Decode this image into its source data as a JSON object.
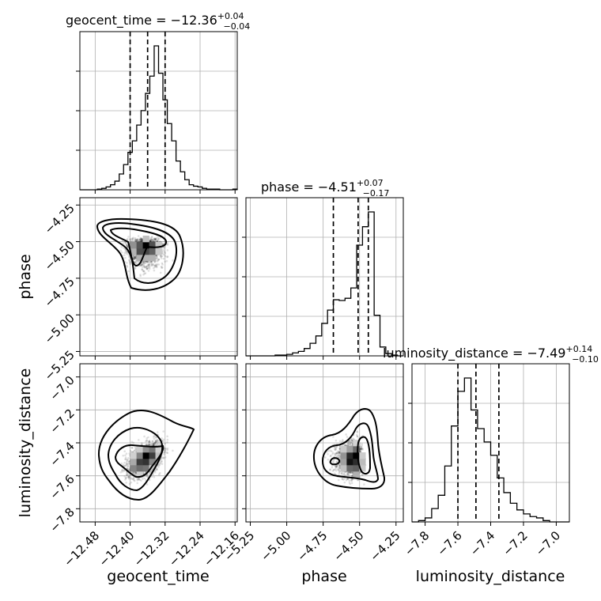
{
  "chart_data": {
    "type": "corner",
    "parameters": [
      "geocent_time",
      "phase",
      "luminosity_distance"
    ],
    "grid": true,
    "ticks": {
      "geocent_time": [
        "−12.48",
        "−12.40",
        "−12.32",
        "−12.24",
        "−12.16"
      ],
      "phase": [
        "−5.25",
        "−5.00",
        "−4.75",
        "−4.50",
        "−4.25"
      ],
      "luminosity_distance": [
        "−7.8",
        "−7.6",
        "−7.4",
        "−7.2",
        "−7.0"
      ]
    },
    "axis_ranges": {
      "geocent_time": [
        -12.515,
        -12.155
      ],
      "phase": [
        -5.28,
        -4.2
      ],
      "luminosity_distance": [
        -7.88,
        -6.92
      ]
    },
    "diagonal": [
      {
        "param": "geocent_time",
        "title": {
          "base": "geocent_time = −12.36",
          "plus": "+0.04",
          "minus": "−0.04"
        },
        "quantiles": [
          -12.4,
          -12.36,
          -12.32
        ],
        "hist_edges": [
          -12.515,
          -12.505,
          -12.495,
          -12.485,
          -12.475,
          -12.465,
          -12.455,
          -12.445,
          -12.435,
          -12.425,
          -12.415,
          -12.405,
          -12.395,
          -12.385,
          -12.375,
          -12.365,
          -12.355,
          -12.345,
          -12.335,
          -12.325,
          -12.315,
          -12.305,
          -12.295,
          -12.285,
          -12.275,
          -12.265,
          -12.255,
          -12.245,
          -12.235,
          -12.225,
          -12.215,
          -12.205,
          -12.195,
          -12.185,
          -12.175,
          -12.165,
          -12.155
        ],
        "hist_counts": [
          0,
          0,
          0,
          0,
          1,
          2,
          4,
          7,
          12,
          22,
          35,
          52,
          68,
          90,
          110,
          134,
          158,
          200,
          162,
          125,
          92,
          68,
          40,
          25,
          14,
          7,
          5,
          4,
          2,
          1,
          1,
          1,
          0,
          0,
          0,
          1
        ]
      },
      {
        "param": "phase",
        "title": {
          "base": "phase = −4.51",
          "plus": "+0.07",
          "minus": "−0.17"
        },
        "quantiles": [
          -4.68,
          -4.51,
          -4.44
        ],
        "hist_edges": [
          -5.28,
          -5.24,
          -5.2,
          -5.16,
          -5.12,
          -5.08,
          -5.04,
          -5.0,
          -4.96,
          -4.92,
          -4.88,
          -4.84,
          -4.8,
          -4.76,
          -4.72,
          -4.68,
          -4.64,
          -4.6,
          -4.56,
          -4.52,
          -4.48,
          -4.44,
          -4.4,
          -4.36,
          -4.32,
          -4.28,
          -4.24,
          -4.2
        ],
        "hist_counts": [
          0,
          0,
          0,
          0,
          0,
          1,
          1,
          2,
          4,
          6,
          10,
          17,
          27,
          44,
          62,
          76,
          75,
          78,
          92,
          150,
          175,
          195,
          55,
          12,
          3,
          1,
          0
        ]
      },
      {
        "param": "luminosity_distance",
        "title": {
          "base": "luminosity_distance = −7.49",
          "plus": "+0.14",
          "minus": "−0.10"
        },
        "quantiles": [
          -7.6,
          -7.49,
          -7.35
        ],
        "hist_edges": [
          -7.88,
          -7.84,
          -7.8,
          -7.76,
          -7.72,
          -7.68,
          -7.64,
          -7.6,
          -7.56,
          -7.52,
          -7.48,
          -7.44,
          -7.4,
          -7.36,
          -7.32,
          -7.28,
          -7.24,
          -7.2,
          -7.16,
          -7.12,
          -7.08,
          -7.04,
          -7.0,
          -6.96,
          -6.92
        ],
        "hist_counts": [
          0,
          1,
          3,
          10,
          20,
          42,
          72,
          98,
          108,
          84,
          70,
          60,
          50,
          33,
          22,
          14,
          9,
          6,
          4,
          3,
          1,
          0,
          0,
          0
        ]
      }
    ],
    "off_diagonal": [
      {
        "x": "geocent_time",
        "y": "phase"
      },
      {
        "x": "geocent_time",
        "y": "luminosity_distance"
      },
      {
        "x": "phase",
        "y": "luminosity_distance"
      }
    ]
  }
}
